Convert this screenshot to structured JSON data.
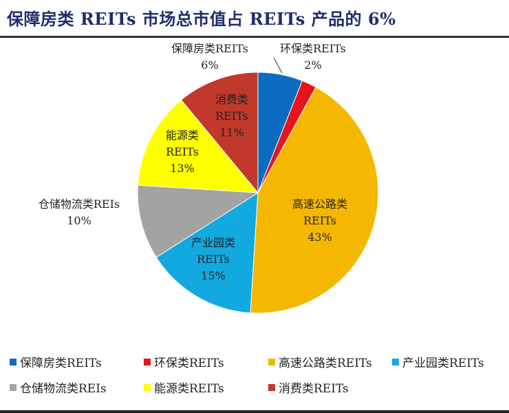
{
  "chart_data": {
    "type": "pie",
    "title": "保障房类 REITs 市场总市值占 REITs 产品的 6%",
    "start": "top",
    "direction": "clockwise",
    "legend_position": "bottom",
    "slices": [
      {
        "name": "保障房类REITs",
        "label": [
          "保障房类REITs",
          "6%"
        ],
        "value": 6,
        "color": "#0b6cbf"
      },
      {
        "name": "环保类REITs",
        "label": [
          "环保类REITs",
          "2%"
        ],
        "value": 2,
        "color": "#e8141c"
      },
      {
        "name": "高速公路类REITs",
        "label": [
          "高速公路类",
          "REITs",
          "43%"
        ],
        "value": 43,
        "color": "#f5b800"
      },
      {
        "name": "产业园类REITs",
        "label": [
          "产业园类",
          "REITs",
          "15%"
        ],
        "value": 15,
        "color": "#12a9e0"
      },
      {
        "name": "仓储物流类REIs",
        "label": [
          "仓储物流类REIs",
          "10%"
        ],
        "value": 10,
        "color": "#a3a3a3"
      },
      {
        "name": "能源类REITs",
        "label": [
          "能源类",
          "REITs",
          "13%"
        ],
        "value": 13,
        "color": "#ffff00"
      },
      {
        "name": "消费类REITs",
        "label": [
          "消费类",
          "REITs",
          "11%"
        ],
        "value": 11,
        "color": "#c0392b"
      }
    ]
  }
}
